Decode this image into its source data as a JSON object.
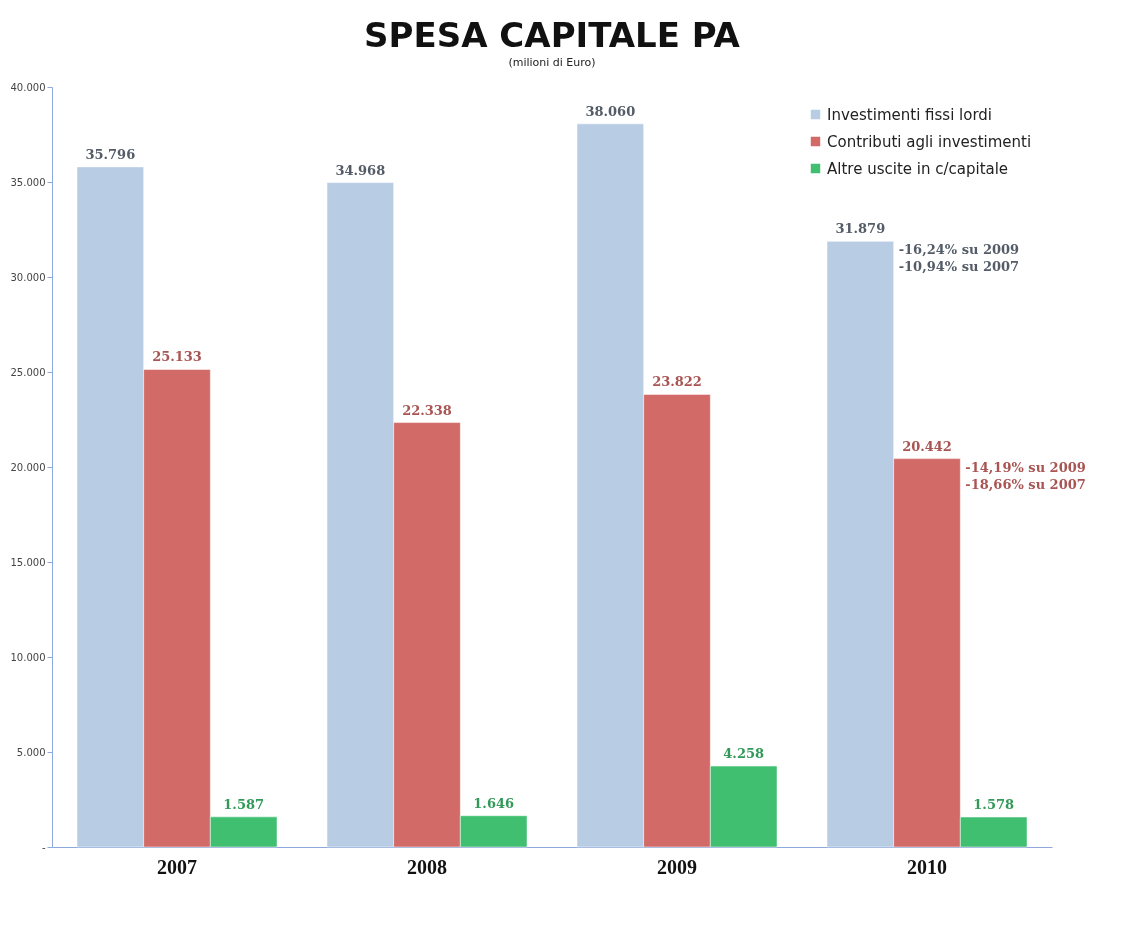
{
  "chart_data": {
    "type": "bar",
    "title": "SPESA CAPITALE PA",
    "subtitle": "(milioni di Euro)",
    "categories": [
      "2007",
      "2008",
      "2009",
      "2010"
    ],
    "series": [
      {
        "name": "Investimenti fissi lordi",
        "color": "#b8cce4",
        "values": [
          35796,
          34968,
          38060,
          31879
        ],
        "value_labels": [
          "35.796",
          "34.968",
          "38.060",
          "31.879"
        ]
      },
      {
        "name": "Contributi agli investimenti",
        "color": "#d26a68",
        "values": [
          25133,
          22338,
          23822,
          20442
        ],
        "value_labels": [
          "25.133",
          "22.338",
          "23.822",
          "20.442"
        ]
      },
      {
        "name": "Altre uscite in c/capitale",
        "color": "#3fbf6f",
        "values": [
          1587,
          1646,
          4258,
          1578
        ],
        "value_labels": [
          "1.587",
          "1.646",
          "4.258",
          "1.578"
        ]
      }
    ],
    "ylim": [
      0,
      40000
    ],
    "yticks": [
      {
        "value": 0,
        "label": "-"
      },
      {
        "value": 5000,
        "label": "5.000"
      },
      {
        "value": 10000,
        "label": "10.000"
      },
      {
        "value": 15000,
        "label": "15.000"
      },
      {
        "value": 20000,
        "label": "20.000"
      },
      {
        "value": 25000,
        "label": "25.000"
      },
      {
        "value": 30000,
        "label": "30.000"
      },
      {
        "value": 35000,
        "label": "35.000"
      },
      {
        "value": 40000,
        "label": "40.000"
      }
    ],
    "annotations": [
      "-16,24% su 2009",
      "-10,94% su 2007",
      "-14,19% su 2009",
      "-18,66% su 2007"
    ],
    "legend": "top right",
    "grid": false
  }
}
